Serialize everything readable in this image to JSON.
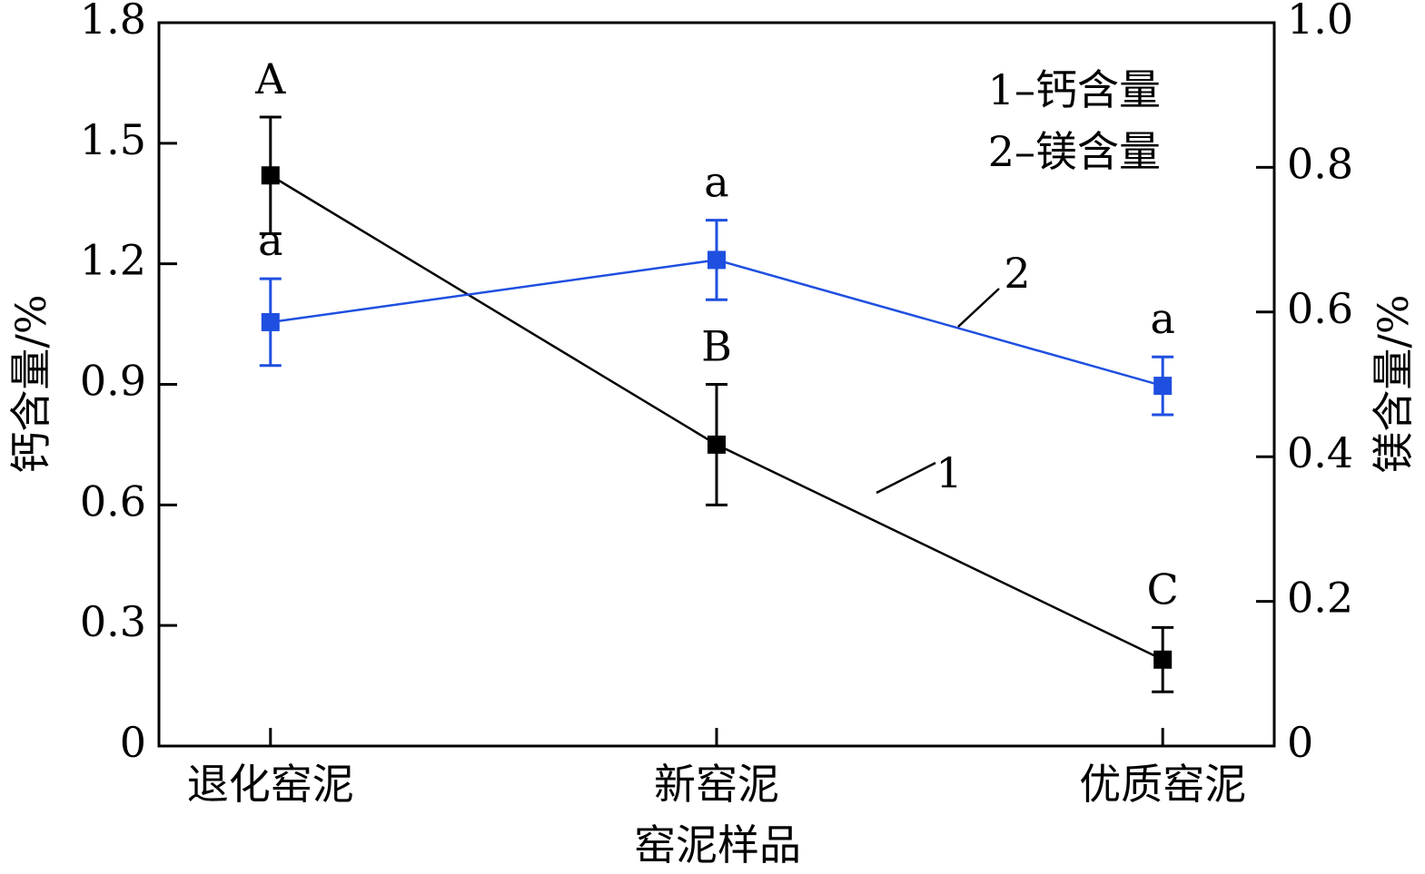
{
  "chart_data": {
    "type": "line",
    "x_label": "窑泥样品",
    "y_label": "钙含量/%",
    "y2_label": "镁含量/%",
    "categories": [
      "退化窑泥",
      "新窑泥",
      "优质窑泥"
    ],
    "ylim": [
      0,
      1.8
    ],
    "yticks": [
      0,
      0.3,
      0.6,
      0.9,
      1.2,
      1.5,
      1.8
    ],
    "y2lim": [
      0,
      1.0
    ],
    "y2ticks": [
      0,
      0.2,
      0.4,
      0.6,
      0.8,
      {
        "value": 1.0,
        "label": "1.0"
      }
    ],
    "series": [
      {
        "name": "1–钙含量",
        "line_label": "1",
        "color": "#000000",
        "axis": "y",
        "values": [
          1.42,
          0.75,
          0.215
        ],
        "errors": [
          0.145,
          0.15,
          0.08
        ],
        "significance": [
          "A",
          "B",
          "C"
        ]
      },
      {
        "name": "2–镁含量",
        "line_label": "2",
        "color": "#1f4fe0",
        "axis": "y2",
        "values": [
          0.586,
          0.672,
          0.498
        ],
        "errors": [
          0.06,
          0.055,
          0.04
        ],
        "significance": [
          "a",
          "a",
          "a"
        ]
      }
    ]
  }
}
